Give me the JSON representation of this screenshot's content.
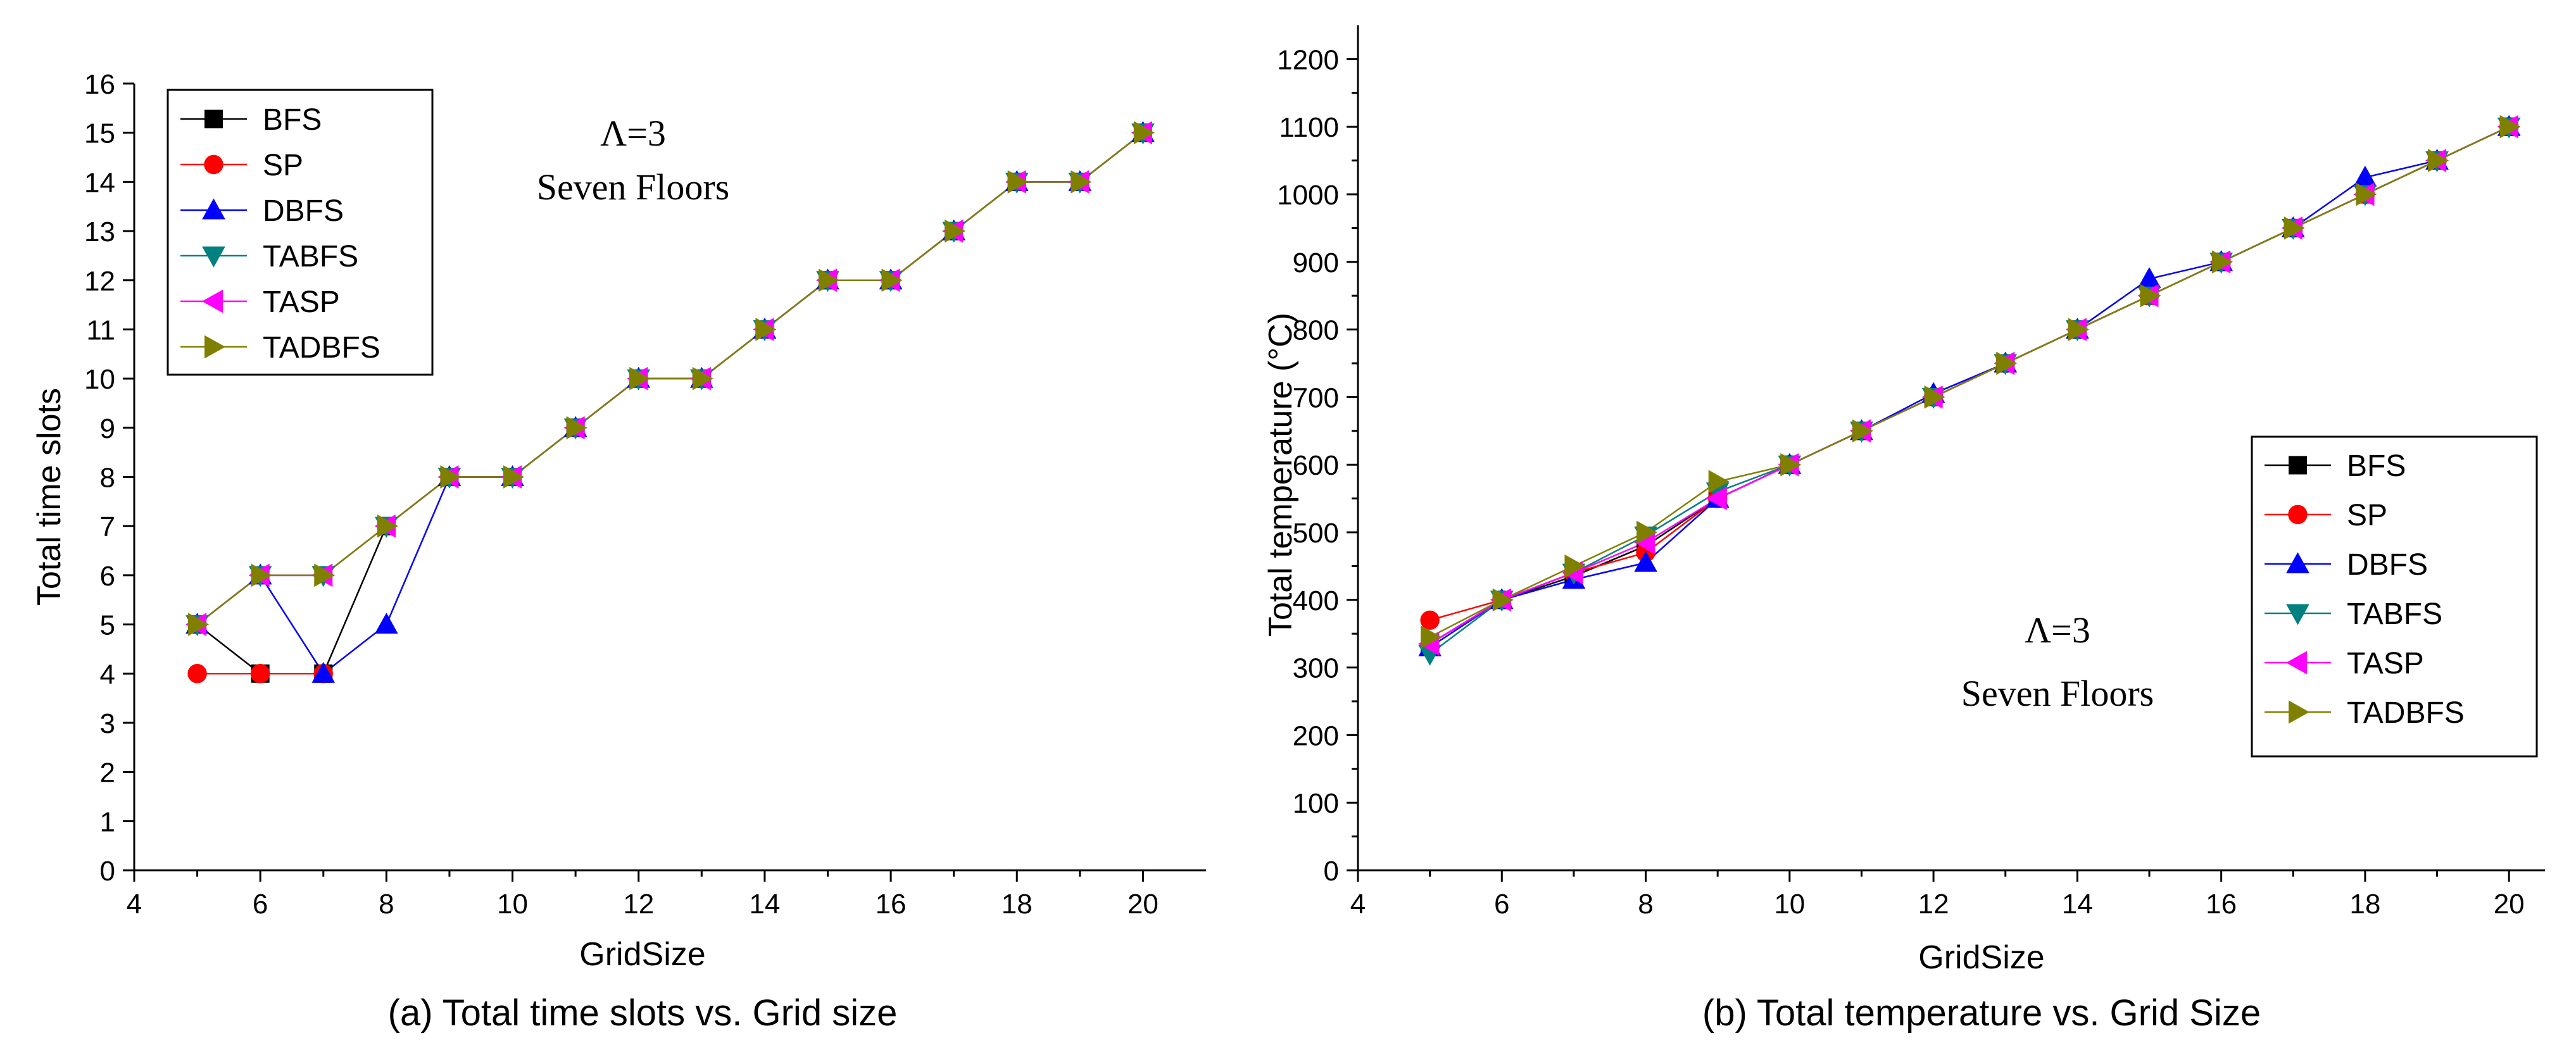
{
  "chart_data": [
    {
      "type": "line",
      "title": "",
      "caption": "(a) Total time slots vs. Grid size",
      "xlabel": "GridSize",
      "ylabel": "Total time slots",
      "xlim": [
        4,
        21
      ],
      "ylim": [
        0,
        16
      ],
      "xticks": [
        4,
        6,
        8,
        10,
        12,
        14,
        16,
        18,
        20
      ],
      "yticks": [
        0,
        1,
        2,
        3,
        4,
        5,
        6,
        7,
        8,
        9,
        10,
        11,
        12,
        13,
        14,
        15,
        16
      ],
      "annotation": [
        "Λ=3",
        "Seven Floors"
      ],
      "legend_position": "top-left",
      "series": [
        {
          "name": "BFS",
          "color": "#000000",
          "marker": "square",
          "x": [
            5,
            6,
            7,
            8,
            9,
            10,
            11,
            12,
            13,
            14,
            15,
            16,
            17,
            18,
            19,
            20
          ],
          "y": [
            5,
            4,
            4,
            7,
            8,
            8,
            9,
            10,
            10,
            11,
            12,
            12,
            13,
            14,
            14,
            15
          ]
        },
        {
          "name": "SP",
          "color": "#ff0000",
          "marker": "circle",
          "x": [
            5,
            6,
            7
          ],
          "y": [
            4,
            4,
            4
          ]
        },
        {
          "name": "DBFS",
          "color": "#0000ff",
          "marker": "triangle-up",
          "x": [
            5,
            6,
            7,
            8,
            9,
            10,
            11,
            12,
            13,
            14,
            15,
            16,
            17,
            18,
            19,
            20
          ],
          "y": [
            5,
            6,
            4,
            5,
            8,
            8,
            9,
            10,
            10,
            11,
            12,
            12,
            13,
            14,
            14,
            15
          ]
        },
        {
          "name": "TABFS",
          "color": "#008080",
          "marker": "triangle-down",
          "x": [
            5,
            6,
            7,
            8,
            9,
            10,
            11,
            12,
            13,
            14,
            15,
            16,
            17,
            18,
            19,
            20
          ],
          "y": [
            5,
            6,
            6,
            7,
            8,
            8,
            9,
            10,
            10,
            11,
            12,
            12,
            13,
            14,
            14,
            15
          ]
        },
        {
          "name": "TASP",
          "color": "#ff00ff",
          "marker": "triangle-left",
          "x": [
            5,
            6,
            7,
            8,
            9,
            10,
            11,
            12,
            13,
            14,
            15,
            16,
            17,
            18,
            19,
            20
          ],
          "y": [
            5,
            6,
            6,
            7,
            8,
            8,
            9,
            10,
            10,
            11,
            12,
            12,
            13,
            14,
            14,
            15
          ]
        },
        {
          "name": "TADBFS",
          "color": "#808000",
          "marker": "triangle-right",
          "x": [
            5,
            6,
            7,
            8,
            9,
            10,
            11,
            12,
            13,
            14,
            15,
            16,
            17,
            18,
            19,
            20
          ],
          "y": [
            5,
            6,
            6,
            7,
            8,
            8,
            9,
            10,
            10,
            11,
            12,
            12,
            13,
            14,
            14,
            15
          ]
        }
      ]
    },
    {
      "type": "line",
      "title": "",
      "caption": "(b) Total temperature vs. Grid Size",
      "xlabel": "GridSize",
      "ylabel": "Total temperature (°C)",
      "xlim": [
        4,
        20.5
      ],
      "ylim": [
        0,
        1250
      ],
      "xticks": [
        4,
        6,
        8,
        10,
        12,
        14,
        16,
        18,
        20
      ],
      "yticks": [
        0,
        100,
        200,
        300,
        400,
        500,
        600,
        700,
        800,
        900,
        1000,
        1100,
        1200
      ],
      "annotation": [
        "Λ=3",
        "Seven Floors"
      ],
      "legend_position": "bottom-right",
      "series": [
        {
          "name": "BFS",
          "color": "#000000",
          "marker": "square",
          "x": [
            5,
            6,
            7,
            8,
            9,
            10,
            11,
            12,
            13,
            14,
            15,
            16,
            17,
            18,
            19,
            20
          ],
          "y": [
            335,
            400,
            435,
            480,
            550,
            600,
            650,
            700,
            750,
            800,
            850,
            900,
            950,
            1000,
            1050,
            1100
          ]
        },
        {
          "name": "SP",
          "color": "#ff0000",
          "marker": "circle",
          "x": [
            5,
            6,
            7,
            8,
            9,
            10,
            11,
            12,
            13,
            14,
            15,
            16,
            17,
            18,
            19,
            20
          ],
          "y": [
            370,
            400,
            440,
            470,
            550,
            600,
            650,
            700,
            750,
            800,
            850,
            900,
            950,
            1000,
            1050,
            1100
          ]
        },
        {
          "name": "DBFS",
          "color": "#0000ff",
          "marker": "triangle-up",
          "x": [
            5,
            6,
            7,
            8,
            9,
            10,
            11,
            12,
            13,
            14,
            15,
            16,
            17,
            18,
            19,
            20
          ],
          "y": [
            330,
            400,
            430,
            455,
            550,
            600,
            650,
            705,
            750,
            800,
            875,
            900,
            950,
            1025,
            1050,
            1100
          ]
        },
        {
          "name": "TABFS",
          "color": "#008080",
          "marker": "triangle-down",
          "x": [
            5,
            6,
            7,
            8,
            9,
            10,
            11,
            12,
            13,
            14,
            15,
            16,
            17,
            18,
            19,
            20
          ],
          "y": [
            320,
            400,
            440,
            495,
            560,
            600,
            650,
            700,
            750,
            800,
            850,
            900,
            950,
            1000,
            1050,
            1100
          ]
        },
        {
          "name": "TASP",
          "color": "#ff00ff",
          "marker": "triangle-left",
          "x": [
            5,
            6,
            7,
            8,
            9,
            10,
            11,
            12,
            13,
            14,
            15,
            16,
            17,
            18,
            19,
            20
          ],
          "y": [
            335,
            400,
            440,
            485,
            550,
            600,
            650,
            700,
            750,
            800,
            850,
            900,
            950,
            1000,
            1050,
            1100
          ]
        },
        {
          "name": "TADBFS",
          "color": "#808000",
          "marker": "triangle-right",
          "x": [
            5,
            6,
            7,
            8,
            9,
            10,
            11,
            12,
            13,
            14,
            15,
            16,
            17,
            18,
            19,
            20
          ],
          "y": [
            345,
            400,
            450,
            500,
            575,
            600,
            650,
            700,
            750,
            800,
            850,
            900,
            950,
            1000,
            1050,
            1100
          ]
        }
      ]
    }
  ]
}
